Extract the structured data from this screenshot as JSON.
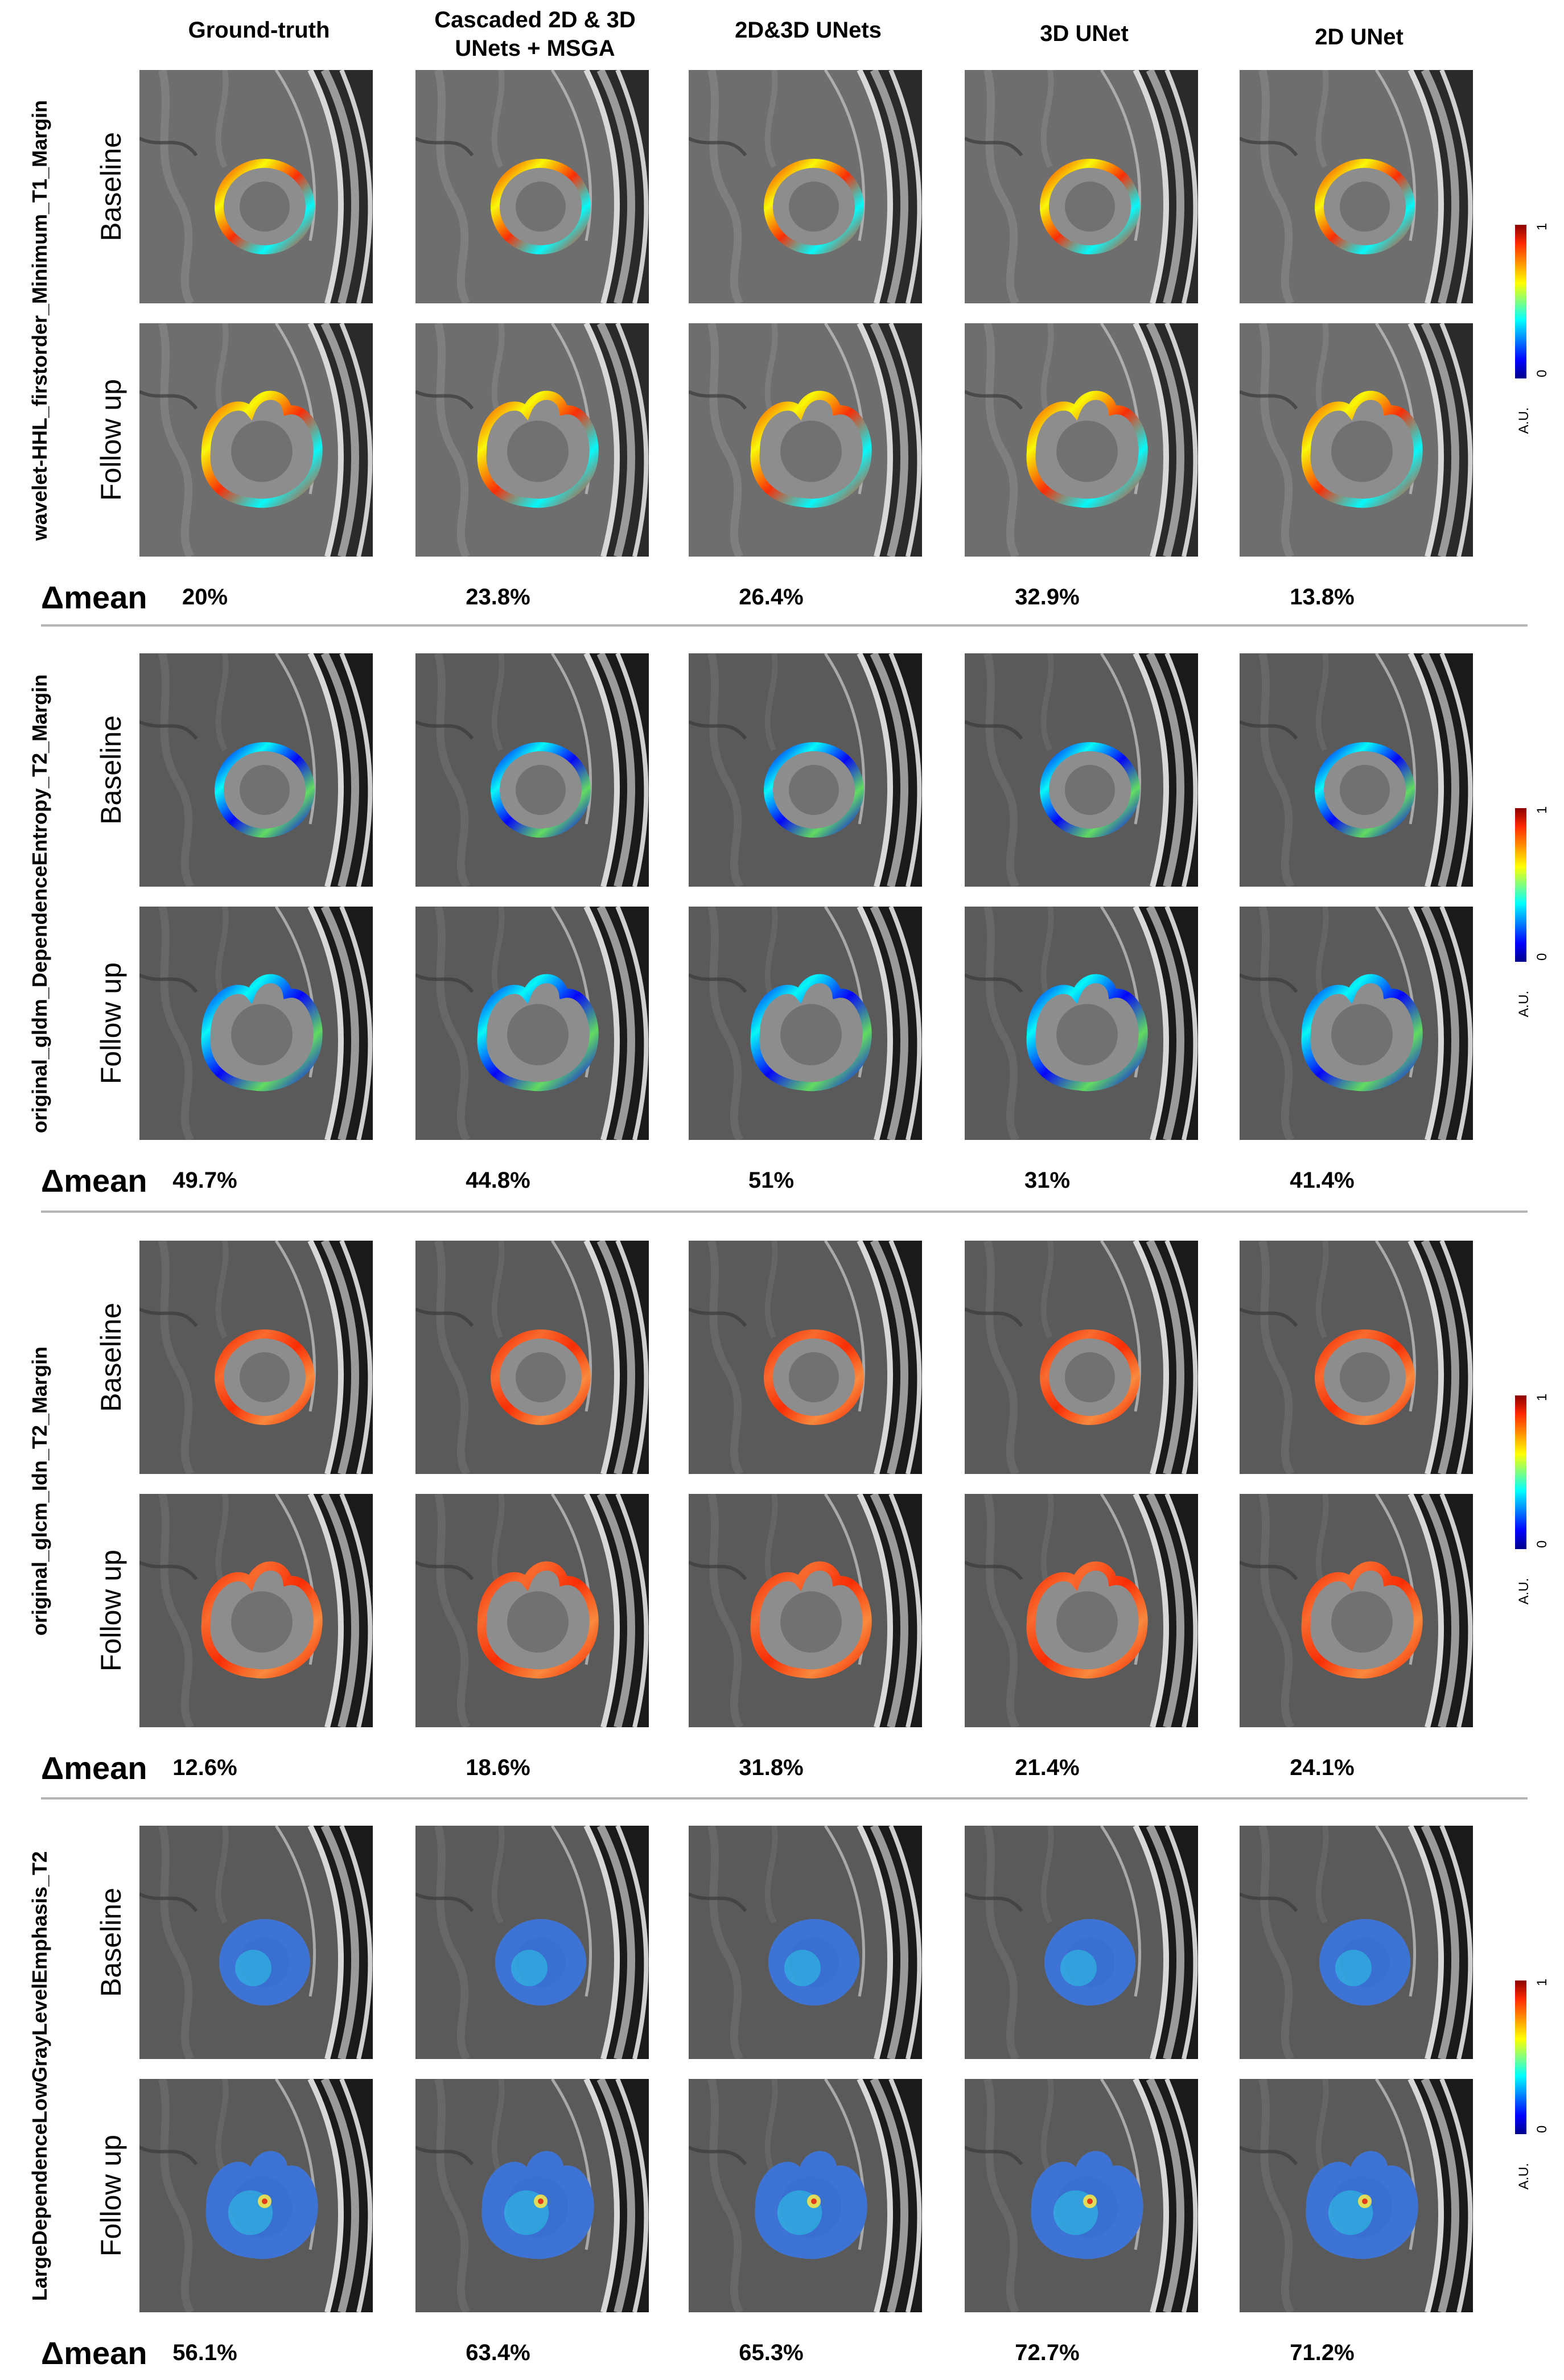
{
  "columns": [
    {
      "key": "gt",
      "label": "Ground-truth"
    },
    {
      "key": "msga",
      "label": "Cascaded 2D & 3D UNets + MSGA"
    },
    {
      "key": "cascade",
      "label": "2D&3D UNets"
    },
    {
      "key": "u3d",
      "label": "3D UNet"
    },
    {
      "key": "u2d",
      "label": "2D UNet"
    }
  ],
  "row_labels": {
    "baseline": "Baseline",
    "followup": "Follow up"
  },
  "delta_label": "Δmean",
  "colorbar": {
    "min": "0",
    "max": "1",
    "unit": "A.U."
  },
  "sections": [
    {
      "feature": "wavelet-HHL_firstorder_Minimum_T1_Margin",
      "modality": "T1",
      "overlay": "ring-warm",
      "delta": [
        "20%",
        "23.8%",
        "26.4%",
        "32.9%",
        "13.8%"
      ]
    },
    {
      "feature": "original_gldm_DependenceEntropy_T2_Margin",
      "modality": "T2",
      "overlay": "ring-cool",
      "delta": [
        "49.7%",
        "44.8%",
        "51%",
        "31%",
        "41.4%"
      ]
    },
    {
      "feature": "original_glcm_Idn_T2_Margin",
      "modality": "T2",
      "overlay": "ring-red",
      "delta": [
        "12.6%",
        "18.6%",
        "31.8%",
        "21.4%",
        "24.1%"
      ]
    },
    {
      "feature": "LargeDependenceLowGrayLevelEmphasis_T2",
      "modality": "T2",
      "overlay": "fill-blue",
      "delta": [
        "56.1%",
        "63.4%",
        "65.3%",
        "72.7%",
        "71.2%"
      ]
    }
  ],
  "colors": {
    "jet_top": "#8b0000",
    "jet_red": "#ff2a00",
    "jet_yellow": "#ffff00",
    "jet_cyan": "#00ffff",
    "jet_blue": "#0000ff",
    "jet_bottom": "#00008b",
    "separator": "#b5b5b5"
  }
}
